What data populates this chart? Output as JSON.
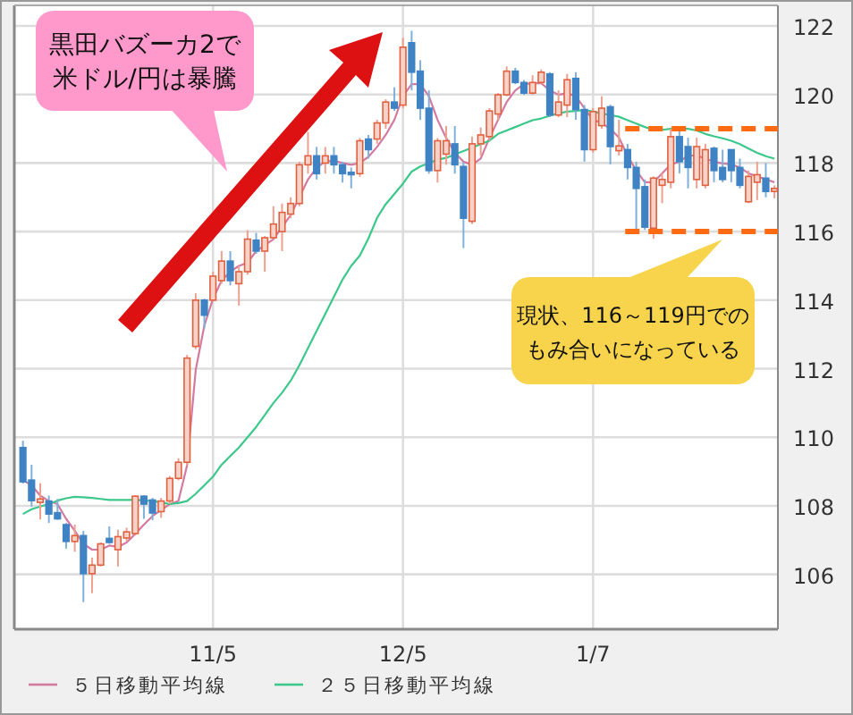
{
  "chart_data": {
    "type": "candlestick",
    "categories": [
      null,
      null,
      null,
      null,
      null,
      null,
      null,
      null,
      null,
      null,
      null,
      null,
      null,
      null,
      null,
      null,
      null,
      null,
      null,
      null,
      null,
      null,
      "11/5",
      null,
      null,
      null,
      null,
      null,
      null,
      null,
      null,
      null,
      null,
      null,
      null,
      null,
      null,
      null,
      null,
      null,
      null,
      null,
      null,
      null,
      "12/5",
      null,
      null,
      null,
      null,
      null,
      null,
      null,
      null,
      null,
      null,
      null,
      null,
      null,
      null,
      null,
      null,
      null,
      null,
      null,
      null,
      null,
      "1/7",
      null,
      null,
      null,
      null,
      null,
      null,
      null,
      null,
      null,
      null,
      null,
      null,
      null,
      null,
      null,
      null,
      null,
      null,
      null,
      null,
      null
    ],
    "ohlc": [
      [
        109.7,
        109.9,
        108.65,
        108.7
      ],
      [
        108.75,
        109.2,
        107.97,
        108.15
      ],
      [
        108.1,
        108.66,
        107.6,
        108.2
      ],
      [
        108.14,
        108.3,
        107.5,
        107.76
      ],
      [
        107.8,
        108.2,
        107.59,
        107.62
      ],
      [
        107.45,
        107.5,
        106.75,
        106.96
      ],
      [
        106.96,
        107.45,
        106.66,
        107.13
      ],
      [
        107.13,
        107.27,
        105.19,
        106.02
      ],
      [
        106.02,
        106.49,
        105.45,
        106.27
      ],
      [
        106.27,
        106.93,
        106.23,
        106.89
      ],
      [
        107.05,
        107.4,
        106.89,
        106.93
      ],
      [
        106.72,
        107.3,
        106.23,
        107.1
      ],
      [
        107.06,
        107.36,
        106.96,
        107.24
      ],
      [
        107.19,
        108.31,
        107.13,
        108.28
      ],
      [
        108.28,
        108.31,
        107.62,
        108.05
      ],
      [
        108.17,
        108.23,
        107.58,
        107.79
      ],
      [
        107.83,
        108.23,
        107.65,
        108.14
      ],
      [
        108.14,
        108.87,
        108.05,
        108.8
      ],
      [
        108.8,
        109.39,
        108.75,
        109.27
      ],
      [
        109.27,
        112.4,
        109.18,
        112.31
      ],
      [
        112.65,
        114.2,
        112.57,
        114.0
      ],
      [
        114.0,
        114.04,
        113.18,
        113.56
      ],
      [
        114.0,
        114.83,
        113.96,
        114.7
      ],
      [
        114.57,
        115.43,
        114.48,
        115.14
      ],
      [
        115.14,
        115.43,
        114.43,
        114.57
      ],
      [
        114.48,
        115.0,
        113.84,
        114.83
      ],
      [
        114.83,
        116.04,
        114.74,
        115.78
      ],
      [
        115.75,
        115.96,
        115.35,
        115.43
      ],
      [
        115.43,
        115.87,
        114.83,
        115.82
      ],
      [
        115.82,
        116.74,
        115.78,
        116.22
      ],
      [
        116.0,
        116.82,
        115.43,
        116.56
      ],
      [
        116.51,
        117.0,
        116.39,
        116.82
      ],
      [
        116.82,
        118.04,
        116.74,
        117.95
      ],
      [
        117.95,
        118.91,
        117.69,
        118.21
      ],
      [
        118.21,
        118.47,
        117.52,
        117.69
      ],
      [
        118.0,
        118.47,
        117.69,
        118.21
      ],
      [
        118.21,
        118.47,
        117.69,
        117.95
      ],
      [
        117.95,
        118.04,
        117.43,
        117.69
      ],
      [
        117.73,
        117.87,
        117.26,
        117.66
      ],
      [
        117.69,
        118.73,
        117.6,
        118.65
      ],
      [
        118.7,
        118.82,
        118.13,
        118.39
      ],
      [
        118.7,
        119.26,
        118.56,
        119.17
      ],
      [
        119.17,
        119.86,
        119.0,
        119.78
      ],
      [
        119.78,
        120.21,
        119.52,
        119.6
      ],
      [
        119.69,
        121.65,
        119.6,
        121.38
      ],
      [
        121.51,
        121.86,
        120.12,
        120.65
      ],
      [
        120.68,
        121.0,
        119.26,
        119.6
      ],
      [
        119.6,
        120.12,
        117.69,
        117.78
      ],
      [
        117.78,
        118.73,
        117.43,
        118.65
      ],
      [
        118.26,
        119.08,
        117.95,
        118.65
      ],
      [
        118.56,
        119.08,
        117.69,
        117.95
      ],
      [
        117.9,
        118.04,
        115.52,
        116.39
      ],
      [
        116.3,
        118.77,
        116.22,
        118.56
      ],
      [
        118.56,
        119.04,
        118.21,
        118.82
      ],
      [
        118.77,
        119.6,
        118.65,
        119.52
      ],
      [
        119.43,
        120.04,
        119.26,
        119.99
      ],
      [
        119.99,
        120.82,
        119.95,
        120.68
      ],
      [
        120.68,
        120.78,
        120.3,
        120.35
      ],
      [
        120.35,
        120.42,
        119.99,
        120.04
      ],
      [
        120.04,
        120.56,
        119.99,
        120.35
      ],
      [
        120.35,
        120.73,
        120.3,
        120.65
      ],
      [
        120.6,
        120.65,
        119.34,
        119.4
      ],
      [
        119.4,
        120.12,
        119.34,
        119.78
      ],
      [
        119.69,
        120.6,
        119.34,
        120.43
      ],
      [
        120.47,
        120.65,
        119.26,
        119.56
      ],
      [
        119.56,
        119.69,
        118.04,
        118.39
      ],
      [
        118.39,
        119.6,
        118.3,
        119.5
      ],
      [
        119.09,
        119.95,
        119.0,
        119.6
      ],
      [
        119.64,
        119.7,
        117.96,
        118.48
      ],
      [
        118.36,
        119.26,
        118.22,
        118.5
      ],
      [
        118.39,
        118.56,
        117.52,
        117.87
      ],
      [
        117.87,
        118.04,
        116.05,
        117.26
      ],
      [
        117.31,
        117.52,
        116.05,
        116.13
      ],
      [
        116.1,
        117.61,
        115.79,
        117.56
      ],
      [
        117.35,
        117.7,
        116.83,
        117.52
      ],
      [
        117.44,
        119.0,
        117.26,
        118.77
      ],
      [
        118.77,
        119.0,
        117.7,
        118.04
      ],
      [
        118.48,
        118.74,
        117.26,
        117.87
      ],
      [
        117.52,
        118.74,
        117.26,
        118.48
      ],
      [
        117.35,
        118.56,
        117.26,
        118.39
      ],
      [
        118.43,
        118.48,
        117.44,
        117.78
      ],
      [
        117.87,
        118.39,
        117.44,
        117.52
      ],
      [
        118.39,
        118.39,
        117.44,
        117.78
      ],
      [
        117.87,
        118.13,
        117.26,
        117.35
      ],
      [
        116.87,
        117.78,
        116.83,
        117.61
      ],
      [
        117.44,
        118.04,
        116.92,
        117.66
      ],
      [
        117.56,
        118.0,
        117.0,
        117.17
      ],
      [
        117.17,
        117.35,
        116.97,
        117.26
      ]
    ],
    "series": [
      {
        "name": "５日移動平均線",
        "type": "line",
        "color": "#d47aa0",
        "values": [
          108.75,
          108.6,
          108.3,
          108.14,
          108.05,
          107.62,
          107.27,
          106.89,
          106.72,
          106.72,
          106.84,
          106.8,
          106.93,
          107.18,
          107.45,
          107.7,
          107.88,
          108.05,
          108.14,
          109.18,
          111.96,
          113.26,
          114.04,
          114.57,
          114.83,
          115.0,
          115.09,
          115.43,
          115.6,
          115.78,
          116.13,
          116.48,
          117.0,
          117.52,
          117.87,
          118.04,
          118.07,
          118.0,
          117.95,
          118.0,
          118.18,
          118.47,
          118.82,
          119.26,
          119.95,
          120.3,
          120.3,
          119.95,
          119.26,
          118.73,
          118.3,
          118.04,
          117.95,
          118.13,
          118.73,
          119.26,
          119.78,
          120.12,
          120.3,
          120.33,
          120.33,
          120.12,
          119.99,
          120.04,
          119.95,
          119.6,
          119.26,
          119.17,
          119.0,
          118.74,
          118.22,
          117.78,
          117.44,
          117.44,
          117.7,
          117.96,
          118.04,
          118.22,
          118.22,
          118.13,
          118.04,
          117.99,
          117.96,
          117.87,
          117.7,
          117.61,
          117.52,
          117.44
        ]
      },
      {
        "name": "２５日移動平均線",
        "type": "line",
        "color": "#3cc88a",
        "values": [
          107.76,
          107.9,
          107.98,
          108.05,
          108.15,
          108.22,
          108.26,
          108.25,
          108.23,
          108.2,
          108.17,
          108.17,
          108.17,
          108.17,
          108.16,
          108.14,
          108.1,
          108.05,
          108.08,
          108.14,
          108.35,
          108.6,
          108.85,
          109.2,
          109.45,
          109.7,
          110.0,
          110.3,
          110.65,
          111.0,
          111.3,
          111.65,
          112.1,
          112.6,
          113.1,
          113.6,
          114.1,
          114.6,
          115.0,
          115.3,
          115.8,
          116.4,
          116.8,
          117.1,
          117.4,
          117.75,
          117.9,
          118.0,
          118.1,
          118.15,
          118.25,
          118.35,
          118.45,
          118.55,
          118.65,
          118.85,
          118.95,
          119.05,
          119.15,
          119.25,
          119.3,
          119.38,
          119.45,
          119.5,
          119.52,
          119.55,
          119.5,
          119.45,
          119.4,
          119.35,
          119.25,
          119.15,
          119.05,
          118.97,
          118.97,
          119.0,
          119.0,
          119.0,
          118.95,
          118.85,
          118.78,
          118.72,
          118.65,
          118.55,
          118.42,
          118.3,
          118.2,
          118.13
        ]
      }
    ],
    "ylim": [
      104.4,
      122.6
    ],
    "yticks": [
      106,
      108,
      110,
      112,
      114,
      116,
      118,
      120,
      122
    ],
    "grid": true,
    "legend": "bottom",
    "ref_lines": [
      {
        "axis": "y",
        "value": 119,
        "color": "#ff6a13",
        "line_style": "dashed"
      },
      {
        "axis": "y",
        "value": 116,
        "color": "#ff6a13",
        "line_style": "dashed"
      }
    ],
    "annotations": [
      "黒田バズーカ2で米ドル/円は暴騰",
      "現状、116～119円でのもみ合いになっている"
    ]
  }
}
